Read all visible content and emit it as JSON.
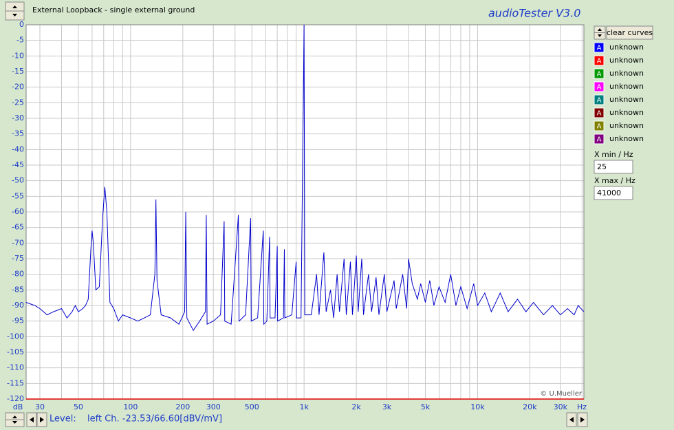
{
  "chart_data": {
    "type": "line",
    "title": "External Loopback - single external ground",
    "x": [
      25,
      28,
      30,
      33,
      36,
      40,
      43,
      46,
      48,
      50,
      53,
      55,
      57,
      59,
      60,
      61,
      63,
      66,
      69,
      71,
      73,
      76,
      80,
      85,
      90,
      100,
      110,
      120,
      130,
      138,
      140,
      142,
      150,
      170,
      190,
      205,
      208,
      211,
      230,
      250,
      270,
      273,
      276,
      300,
      330,
      346,
      349,
      380,
      418,
      422,
      460,
      492,
      496,
      540,
      582,
      586,
      610,
      633,
      637,
      680,
      700,
      704,
      760,
      770,
      774,
      850,
      900,
      905,
      960,
      1000,
      1010,
      1100,
      1180,
      1220,
      1300,
      1340,
      1420,
      1480,
      1550,
      1600,
      1700,
      1750,
      1850,
      1900,
      2000,
      2050,
      2150,
      2200,
      2350,
      2450,
      2600,
      2700,
      2900,
      3000,
      3300,
      3400,
      3700,
      3900,
      4000,
      4200,
      4500,
      4700,
      5000,
      5300,
      5600,
      6000,
      6500,
      7000,
      7500,
      8000,
      8700,
      9500,
      10000,
      11000,
      12000,
      13500,
      15000,
      17000,
      19000,
      21000,
      24000,
      27000,
      30000,
      33000,
      36000,
      38000,
      41000
    ],
    "series": [
      {
        "name": "unknown",
        "color": "#0000cc",
        "values": [
          -89,
          -90,
          -91,
          -93,
          -92,
          -91,
          -94,
          -92,
          -90,
          -92,
          -91,
          -90,
          -88,
          -72,
          -66,
          -70,
          -85,
          -84,
          -62,
          -52,
          -60,
          -89,
          -91,
          -95,
          -93,
          -94,
          -95,
          -94,
          -93,
          -80,
          -56,
          -82,
          -93,
          -94,
          -96,
          -92,
          -60,
          -94,
          -98,
          -95,
          -92,
          -61,
          -96,
          -95,
          -93,
          -63,
          -95,
          -96,
          -61,
          -95,
          -93,
          -62,
          -95,
          -94,
          -66,
          -96,
          -95,
          -68,
          -94,
          -94,
          -71,
          -95,
          -94,
          -72,
          -94,
          -93,
          -76,
          -94,
          -94,
          0,
          -93,
          -93,
          -80,
          -93,
          -73,
          -92,
          -85,
          -94,
          -80,
          -92,
          -75,
          -93,
          -76,
          -93,
          -74,
          -92,
          -75,
          -93,
          -80,
          -92,
          -81,
          -93,
          -80,
          -92,
          -82,
          -91,
          -80,
          -91,
          -75,
          -83,
          -88,
          -83,
          -89,
          -82,
          -90,
          -84,
          -89,
          -80,
          -90,
          -84,
          -91,
          -83,
          -90,
          -86,
          -92,
          -86,
          -92,
          -88,
          -92,
          -89,
          -93,
          -90,
          -93,
          -91,
          -93,
          -90,
          -92
        ]
      }
    ],
    "xscale": "log",
    "xlim": [
      25,
      41000
    ],
    "ylim": [
      -120,
      0
    ],
    "xticks": [
      30,
      50,
      100,
      200,
      300,
      500,
      {
        "value": 1000,
        "label": "1k"
      },
      {
        "value": 2000,
        "label": "2k"
      },
      {
        "value": 3000,
        "label": "3k"
      },
      {
        "value": 5000,
        "label": "5k"
      },
      {
        "value": 10000,
        "label": "10k"
      },
      {
        "value": 20000,
        "label": "20k"
      },
      {
        "value": 30000,
        "label": "30k"
      }
    ],
    "xgrid": [
      30,
      40,
      50,
      60,
      70,
      80,
      90,
      100,
      200,
      300,
      400,
      500,
      600,
      700,
      800,
      900,
      1000,
      2000,
      3000,
      4000,
      5000,
      6000,
      7000,
      8000,
      9000,
      10000,
      20000,
      30000,
      40000
    ],
    "yticks": [
      0,
      -5,
      -10,
      -15,
      -20,
      -25,
      -30,
      -35,
      -40,
      -45,
      -50,
      -55,
      -60,
      -65,
      -70,
      -75,
      -80,
      -85,
      -90,
      -95,
      -100,
      -105,
      -110,
      -115,
      -120
    ],
    "ylabel": "dB",
    "xlabel": "Hz",
    "grid": true
  },
  "ui": {
    "app_title": "audioTester  V3.0",
    "copyright": "© U.Mueller",
    "clear_button": "clear curves",
    "curve_icon": "A",
    "curve_colors": [
      "#0000ff",
      "#ff0000",
      "#009900",
      "#ff00ff",
      "#008080",
      "#800000",
      "#808000",
      "#800080"
    ],
    "curve_slots": [
      "unknown",
      "unknown",
      "unknown",
      "unknown",
      "unknown",
      "unknown",
      "unknown"
    ],
    "xmin_label": "X min / Hz",
    "xmax_label": "X max / Hz",
    "level_label": "Level:",
    "level_text": "left Ch. -23.53/66.60[dBV/mV]"
  }
}
